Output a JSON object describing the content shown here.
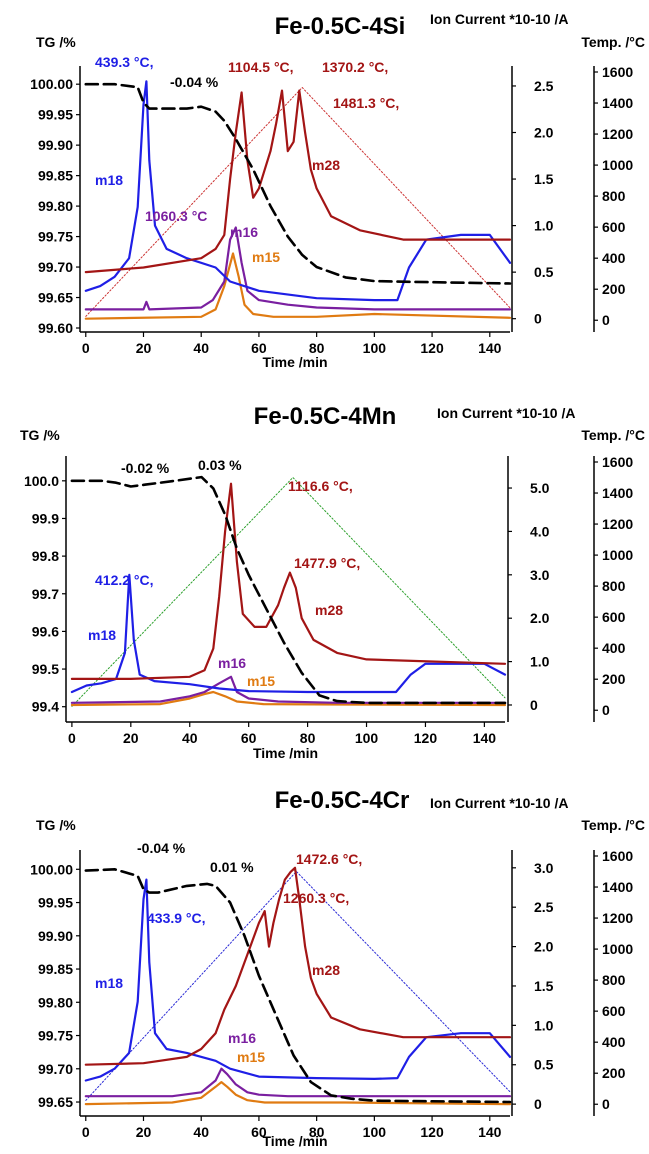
{
  "figure": {
    "colors": {
      "tg": "#000000",
      "m18": "#1f1fe6",
      "m28": "#a31515",
      "m16": "#7a1fa0",
      "m15": "#e07b12",
      "temp_si": "#cc3333",
      "temp_mn": "#2ca02c",
      "temp_cr": "#2b2bd6",
      "axis": "#000000",
      "leader": "#cc6666"
    }
  },
  "chart_data": [
    {
      "type": "line",
      "title": "Fe-0.5C-4Si",
      "right_title": "Ion Current *10-10 /A",
      "xlabel": "Time /min",
      "ylabel": "TG /%",
      "y3label": "Temp. /°C",
      "xlim": [
        -2,
        147
      ],
      "x_ticks": [
        "0",
        "20",
        "40",
        "60",
        "80",
        "100",
        "120",
        "140"
      ],
      "ylim": [
        99.6,
        100.02
      ],
      "y_ticks": [
        "99.60",
        "99.65",
        "99.70",
        "99.75",
        "99.80",
        "99.85",
        "99.90",
        "99.95",
        "100.00"
      ],
      "y2lim": [
        -0.1,
        2.65
      ],
      "y2_ticks": [
        "0",
        "0.5",
        "1.0",
        "1.5",
        "2.0",
        "2.5"
      ],
      "y3lim": [
        -50,
        1600
      ],
      "y3_ticks": [
        "0",
        "200",
        "400",
        "600",
        "800",
        "1000",
        "1200",
        "1400",
        "1600"
      ],
      "series": [
        {
          "name": "TG",
          "axis": "y",
          "dash": "long",
          "x": [
            0,
            10,
            18,
            20,
            22,
            25,
            35,
            40,
            45,
            48,
            52,
            58,
            64,
            70,
            75,
            80,
            90,
            100,
            110,
            147
          ],
          "values": [
            100.0,
            100.0,
            99.995,
            99.97,
            99.96,
            99.96,
            99.96,
            99.963,
            99.955,
            99.94,
            99.91,
            99.86,
            99.8,
            99.75,
            99.72,
            99.7,
            99.683,
            99.677,
            99.676,
            99.673
          ]
        },
        {
          "name": "m18",
          "axis": "y2",
          "x": [
            0,
            5,
            10,
            15,
            18,
            20,
            21,
            22,
            24,
            28,
            35,
            45,
            50,
            60,
            80,
            100,
            108,
            112,
            118,
            130,
            140,
            147
          ],
          "values": [
            0.3,
            0.35,
            0.45,
            0.65,
            1.2,
            2.3,
            2.55,
            1.7,
            1.0,
            0.75,
            0.65,
            0.55,
            0.4,
            0.3,
            0.22,
            0.2,
            0.2,
            0.55,
            0.85,
            0.9,
            0.9,
            0.6
          ]
        },
        {
          "name": "m28",
          "axis": "y2",
          "x": [
            0,
            20,
            40,
            45,
            48,
            50,
            52,
            54,
            56,
            58,
            60,
            62,
            64,
            66,
            68,
            70,
            72,
            74,
            76,
            78,
            80,
            85,
            95,
            110,
            147
          ],
          "values": [
            0.5,
            0.55,
            0.65,
            0.75,
            0.9,
            1.5,
            2.0,
            2.43,
            1.7,
            1.3,
            1.4,
            1.6,
            1.8,
            2.1,
            2.45,
            1.8,
            1.9,
            2.45,
            2.0,
            1.6,
            1.4,
            1.1,
            0.95,
            0.85,
            0.85
          ]
        },
        {
          "name": "m16",
          "axis": "y2",
          "x": [
            0,
            20,
            21,
            22,
            40,
            44,
            48,
            50,
            52,
            54,
            56,
            60,
            70,
            80,
            100,
            147
          ],
          "values": [
            0.1,
            0.1,
            0.18,
            0.1,
            0.12,
            0.2,
            0.4,
            0.85,
            0.98,
            0.6,
            0.3,
            0.2,
            0.15,
            0.12,
            0.1,
            0.1
          ]
        },
        {
          "name": "m15",
          "axis": "y2",
          "x": [
            0,
            40,
            45,
            48,
            51,
            53,
            55,
            58,
            65,
            80,
            100,
            147
          ],
          "values": [
            0.0,
            0.02,
            0.1,
            0.35,
            0.7,
            0.45,
            0.15,
            0.05,
            0.02,
            0.02,
            0.05,
            0.01
          ]
        },
        {
          "name": "Temp",
          "axis": "y3",
          "dash": "dot",
          "x": [
            0,
            75,
            147
          ],
          "values": [
            25,
            1500,
            80
          ]
        }
      ],
      "annotations": [
        {
          "text": "439.3 °C,",
          "color": "m18"
        },
        {
          "text": "-0.04 %",
          "color": "tg"
        },
        {
          "text": "1104.5 °C,",
          "color": "m28"
        },
        {
          "text": "1370.2 °C,",
          "color": "m28"
        },
        {
          "text": "1481.3 °C,",
          "color": "m28"
        },
        {
          "text": "m18",
          "color": "m18"
        },
        {
          "text": "m28",
          "color": "m28"
        },
        {
          "text": "1060.3 °C",
          "color": "m16"
        },
        {
          "text": "m16",
          "color": "m16"
        },
        {
          "text": "m15",
          "color": "m15"
        }
      ]
    },
    {
      "type": "line",
      "title": "Fe-0.5C-4Mn",
      "right_title": "Ion Current *10-10 /A",
      "xlabel": "Time /min",
      "ylabel": "TG /%",
      "y3label": "Temp. /°C",
      "xlim": [
        -2,
        147
      ],
      "x_ticks": [
        "0",
        "20",
        "40",
        "60",
        "80",
        "100",
        "120",
        "140"
      ],
      "ylim": [
        99.37,
        100.05
      ],
      "y_ticks": [
        "99.4",
        "99.5",
        "99.6",
        "99.7",
        "99.8",
        "99.9",
        "100.0"
      ],
      "y2lim": [
        -0.3,
        5.6
      ],
      "y2_ticks": [
        "0",
        "1.0",
        "2.0",
        "3.0",
        "4.0",
        "5.0"
      ],
      "y3lim": [
        -50,
        1600
      ],
      "y3_ticks": [
        "0",
        "200",
        "400",
        "600",
        "800",
        "1000",
        "1200",
        "1400",
        "1600"
      ],
      "series": [
        {
          "name": "TG",
          "axis": "y",
          "dash": "long",
          "x": [
            0,
            10,
            15,
            20,
            25,
            35,
            44,
            48,
            52,
            56,
            60,
            66,
            72,
            78,
            84,
            90,
            100,
            147
          ],
          "values": [
            100.0,
            100.0,
            99.995,
            99.985,
            99.99,
            100.0,
            100.01,
            99.98,
            99.91,
            99.82,
            99.75,
            99.66,
            99.57,
            99.49,
            99.43,
            99.415,
            99.41,
            99.41
          ]
        },
        {
          "name": "m18",
          "axis": "y2",
          "x": [
            0,
            5,
            10,
            15,
            18,
            19.5,
            21,
            23,
            28,
            40,
            50,
            60,
            80,
            100,
            110,
            115,
            120,
            130,
            140,
            147
          ],
          "values": [
            0.3,
            0.45,
            0.5,
            0.6,
            1.2,
            3.0,
            1.5,
            0.7,
            0.55,
            0.48,
            0.38,
            0.32,
            0.3,
            0.3,
            0.3,
            0.7,
            0.95,
            0.95,
            0.95,
            0.7
          ]
        },
        {
          "name": "m28",
          "axis": "y2",
          "x": [
            0,
            20,
            40,
            45,
            48,
            50,
            52,
            54,
            56,
            58,
            62,
            66,
            70,
            72,
            74,
            76,
            78,
            82,
            90,
            100,
            147
          ],
          "values": [
            0.6,
            0.6,
            0.65,
            0.8,
            1.3,
            2.5,
            4.0,
            5.1,
            3.3,
            2.1,
            1.8,
            1.8,
            2.3,
            2.7,
            3.05,
            2.7,
            2.0,
            1.5,
            1.2,
            1.05,
            0.95
          ]
        },
        {
          "name": "m16",
          "axis": "y2",
          "x": [
            0,
            30,
            40,
            45,
            50,
            54,
            56,
            60,
            70,
            90,
            147
          ],
          "values": [
            0.05,
            0.08,
            0.2,
            0.3,
            0.5,
            0.65,
            0.3,
            0.15,
            0.08,
            0.05,
            0.05
          ]
        },
        {
          "name": "m15",
          "axis": "y2",
          "x": [
            0,
            30,
            40,
            45,
            48,
            52,
            56,
            65,
            90,
            147
          ],
          "values": [
            0.0,
            0.02,
            0.15,
            0.25,
            0.3,
            0.2,
            0.08,
            0.02,
            0.01,
            0.0
          ]
        },
        {
          "name": "Temp",
          "axis": "y3",
          "dash": "dot",
          "x": [
            0,
            75,
            147
          ],
          "values": [
            25,
            1500,
            80
          ]
        }
      ],
      "annotations": [
        {
          "text": "-0.02 %",
          "color": "tg"
        },
        {
          "text": "0.03 %",
          "color": "tg"
        },
        {
          "text": "1116.6 °C,",
          "color": "m28"
        },
        {
          "text": "1477.9 °C,",
          "color": "m28"
        },
        {
          "text": "412.2 °C,",
          "color": "m18"
        },
        {
          "text": "m18",
          "color": "m18"
        },
        {
          "text": "m28",
          "color": "m28"
        },
        {
          "text": "m16",
          "color": "m16"
        },
        {
          "text": "m15",
          "color": "m15"
        }
      ]
    },
    {
      "type": "line",
      "title": "Fe-0.5C-4Cr",
      "right_title": "Ion Current *10-10 /A",
      "xlabel": "Time /min",
      "ylabel": "TG /%",
      "y3label": "Temp. /°C",
      "xlim": [
        -2,
        147
      ],
      "x_ticks": [
        "0",
        "20",
        "40",
        "60",
        "80",
        "100",
        "120",
        "140"
      ],
      "ylim": [
        99.635,
        100.02
      ],
      "y_ticks": [
        "99.65",
        "99.70",
        "99.75",
        "99.80",
        "99.85",
        "99.90",
        "99.95",
        "100.00"
      ],
      "y2lim": [
        -0.1,
        3.15
      ],
      "y2_ticks": [
        "0",
        "0.5",
        "1.0",
        "1.5",
        "2.0",
        "2.5",
        "3.0"
      ],
      "y3lim": [
        -50,
        1600
      ],
      "y3_ticks": [
        "0",
        "200",
        "400",
        "600",
        "800",
        "1000",
        "1200",
        "1400",
        "1600"
      ],
      "series": [
        {
          "name": "TG",
          "axis": "y",
          "dash": "long",
          "x": [
            0,
            10,
            18,
            20,
            22,
            25,
            35,
            42,
            45,
            50,
            55,
            60,
            66,
            72,
            78,
            85,
            92,
            100,
            147
          ],
          "values": [
            99.998,
            100.0,
            99.99,
            99.97,
            99.965,
            99.965,
            99.975,
            99.978,
            99.975,
            99.95,
            99.9,
            99.84,
            99.78,
            99.72,
            99.68,
            99.66,
            99.655,
            99.652,
            99.65
          ]
        },
        {
          "name": "m18",
          "axis": "y2",
          "x": [
            0,
            5,
            10,
            15,
            18,
            20,
            21,
            22,
            24,
            28,
            35,
            45,
            50,
            60,
            80,
            100,
            108,
            112,
            118,
            130,
            140,
            147
          ],
          "values": [
            0.3,
            0.35,
            0.45,
            0.65,
            1.3,
            2.6,
            2.85,
            1.8,
            0.9,
            0.7,
            0.65,
            0.55,
            0.45,
            0.35,
            0.33,
            0.32,
            0.33,
            0.6,
            0.85,
            0.9,
            0.9,
            0.6
          ]
        },
        {
          "name": "m28",
          "axis": "y2",
          "x": [
            0,
            20,
            35,
            40,
            45,
            48,
            52,
            56,
            60,
            62,
            63.5,
            65,
            67,
            69,
            71,
            72.5,
            74,
            76,
            78,
            80,
            85,
            95,
            110,
            147
          ],
          "values": [
            0.5,
            0.52,
            0.6,
            0.7,
            0.9,
            1.2,
            1.5,
            1.9,
            2.3,
            2.45,
            2.0,
            2.3,
            2.6,
            2.85,
            2.95,
            3.0,
            2.6,
            2.0,
            1.6,
            1.4,
            1.1,
            0.95,
            0.85,
            0.85
          ]
        },
        {
          "name": "m16",
          "axis": "y2",
          "x": [
            0,
            30,
            40,
            45,
            47,
            49,
            52,
            56,
            60,
            70,
            90,
            147
          ],
          "values": [
            0.1,
            0.1,
            0.15,
            0.3,
            0.45,
            0.38,
            0.25,
            0.15,
            0.12,
            0.1,
            0.1,
            0.1
          ]
        },
        {
          "name": "m15",
          "axis": "y2",
          "x": [
            0,
            30,
            40,
            45,
            47,
            49,
            52,
            56,
            62,
            70,
            90,
            147
          ],
          "values": [
            0.0,
            0.02,
            0.08,
            0.22,
            0.28,
            0.22,
            0.12,
            0.05,
            0.02,
            0.02,
            0.02,
            0.0
          ]
        },
        {
          "name": "Temp",
          "axis": "y3",
          "dash": "dot",
          "x": [
            0,
            73,
            147
          ],
          "values": [
            25,
            1500,
            80
          ]
        }
      ],
      "annotations": [
        {
          "text": "-0.04 %",
          "color": "tg"
        },
        {
          "text": "0.01 %",
          "color": "tg"
        },
        {
          "text": "1472.6 °C,",
          "color": "m28"
        },
        {
          "text": "1260.3 °C,",
          "color": "m28"
        },
        {
          "text": "433.9 °C,",
          "color": "m18"
        },
        {
          "text": "m18",
          "color": "m18"
        },
        {
          "text": "m28",
          "color": "m28"
        },
        {
          "text": "m16",
          "color": "m16"
        },
        {
          "text": "m15",
          "color": "m15"
        }
      ]
    }
  ]
}
